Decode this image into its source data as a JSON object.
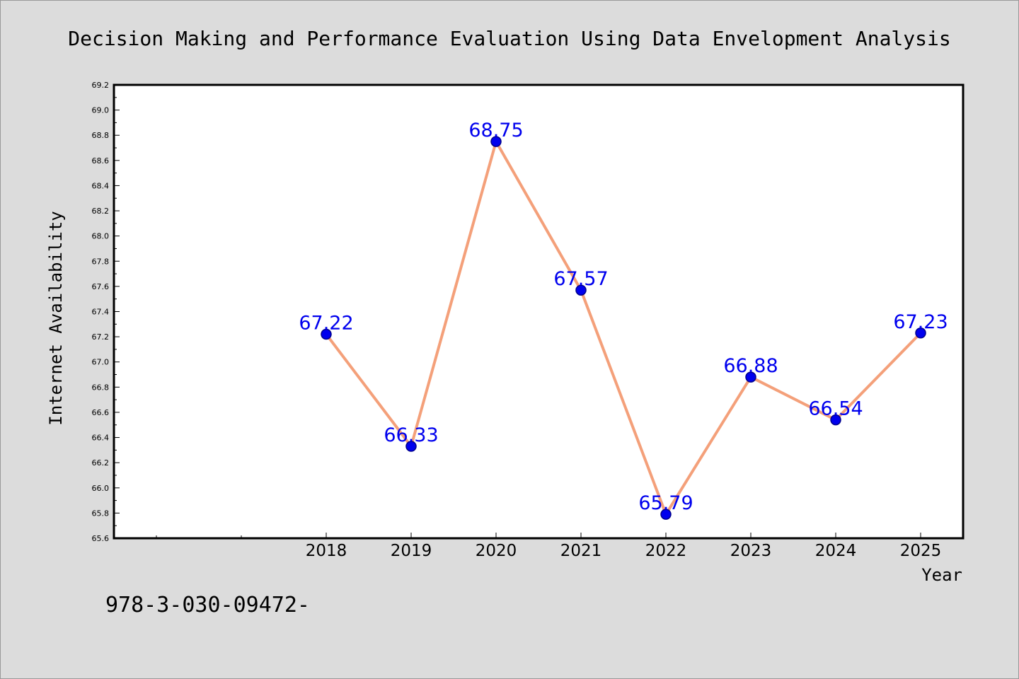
{
  "chart_data": {
    "type": "line",
    "title": "Decision Making and Performance Evaluation Using Data Envelopment Analysis",
    "xlabel": "Year",
    "ylabel": "Internet Availability",
    "categories": [
      "2018",
      "2019",
      "2020",
      "2021",
      "2022",
      "2023",
      "2024",
      "2025"
    ],
    "series": [
      {
        "values": [
          67.22,
          66.33,
          68.75,
          67.57,
          65.79,
          66.88,
          66.54,
          67.23
        ],
        "data_labels": [
          "67.22",
          "66.33",
          "68.75",
          "67.57",
          "65.79",
          "66.88",
          "66.54",
          "67.23"
        ]
      }
    ],
    "ylim": [
      65.6,
      69.2
    ],
    "y_ticks": [
      "65.6",
      "65.8",
      "66.0",
      "66.2",
      "66.4",
      "66.6",
      "66.8",
      "67.0",
      "67.2",
      "67.4",
      "67.6",
      "67.8",
      "68.0",
      "68.2",
      "68.4",
      "68.6",
      "68.8",
      "69.0",
      "69.2"
    ],
    "grid": false,
    "colors": {
      "line": "#f4a07a",
      "marker_fill": "#0000ee",
      "marker_edge": "#00008b",
      "data_label": "#0000ee",
      "background": "#dcdcdc",
      "plot_background": "#ffffff"
    }
  },
  "footer_text": "978-3-030-09472-"
}
